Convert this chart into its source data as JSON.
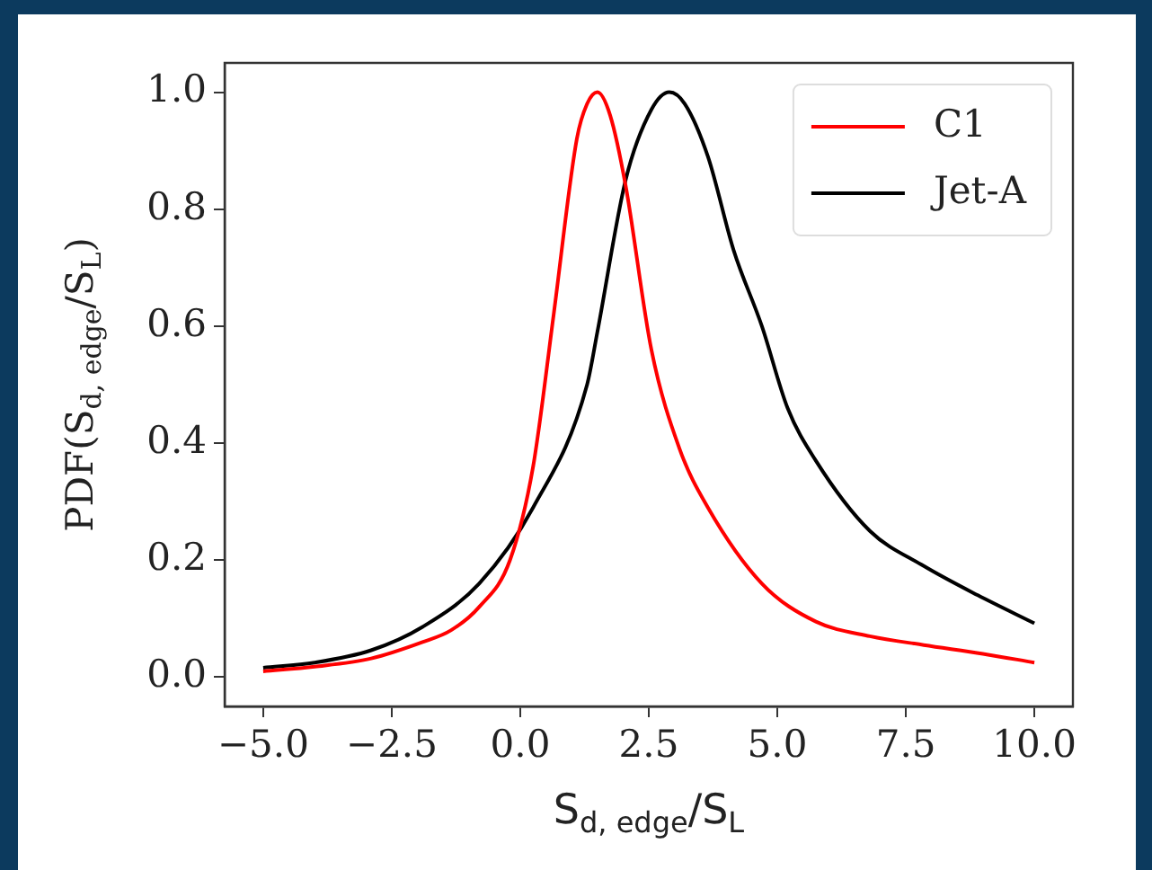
{
  "chart_data": {
    "type": "line",
    "xlabel": "S$_{d, edge}$/S$_{L}$",
    "ylabel": "PDF(S$_{d, edge}$/S$_{L}$)",
    "xlim": [
      -5.75,
      10.75
    ],
    "xticks": [
      {
        "value": -5,
        "label": "−5.0"
      },
      {
        "value": -2.5,
        "label": "−2.5"
      },
      {
        "value": 0,
        "label": "0.0"
      },
      {
        "value": 2.5,
        "label": "2.5"
      },
      {
        "value": 5,
        "label": "5.0"
      },
      {
        "value": 7.5,
        "label": "7.5"
      },
      {
        "value": 10,
        "label": "10.0"
      }
    ],
    "ylim": [
      -0.05,
      1.05
    ],
    "yticks": [
      {
        "value": 0,
        "label": "0.0"
      },
      {
        "value": 0.2,
        "label": "0.2"
      },
      {
        "value": 0.4,
        "label": "0.4"
      },
      {
        "value": 0.6,
        "label": "0.6"
      },
      {
        "value": 0.8,
        "label": "0.8"
      },
      {
        "value": 1,
        "label": "1.0"
      }
    ],
    "grid": false,
    "legend": "top right",
    "marker": "none",
    "line_style": "solid",
    "series": [
      {
        "name": "C1",
        "color": "#ff0000",
        "x": [
          -5,
          -4,
          -2.9,
          -1.9,
          -1.35,
          -0.8,
          -0.2,
          0.25,
          0.65,
          1.1,
          1.3,
          1.5,
          1.75,
          2.05,
          2.55,
          3.1,
          3.65,
          4.7,
          5.75,
          6.8,
          7.85,
          9,
          10
        ],
        "values": [
          0.01,
          0.018,
          0.032,
          0.06,
          0.08,
          0.12,
          0.2,
          0.36,
          0.62,
          0.92,
          0.98,
          1.0,
          0.96,
          0.84,
          0.56,
          0.39,
          0.29,
          0.16,
          0.095,
          0.07,
          0.055,
          0.04,
          0.025
        ]
      },
      {
        "name": "Jet-A",
        "color": "#000000",
        "x": [
          -5,
          -4,
          -2.9,
          -1.9,
          -0.8,
          0.25,
          1.3,
          1.5,
          2.05,
          2.55,
          2.9,
          3.2,
          3.65,
          4.15,
          4.7,
          5.2,
          5.75,
          6.8,
          7.85,
          8.9,
          10
        ],
        "values": [
          0.016,
          0.025,
          0.046,
          0.086,
          0.16,
          0.29,
          0.5,
          0.59,
          0.85,
          0.97,
          1.0,
          0.98,
          0.89,
          0.73,
          0.6,
          0.46,
          0.37,
          0.25,
          0.19,
          0.14,
          0.092
        ]
      }
    ]
  }
}
